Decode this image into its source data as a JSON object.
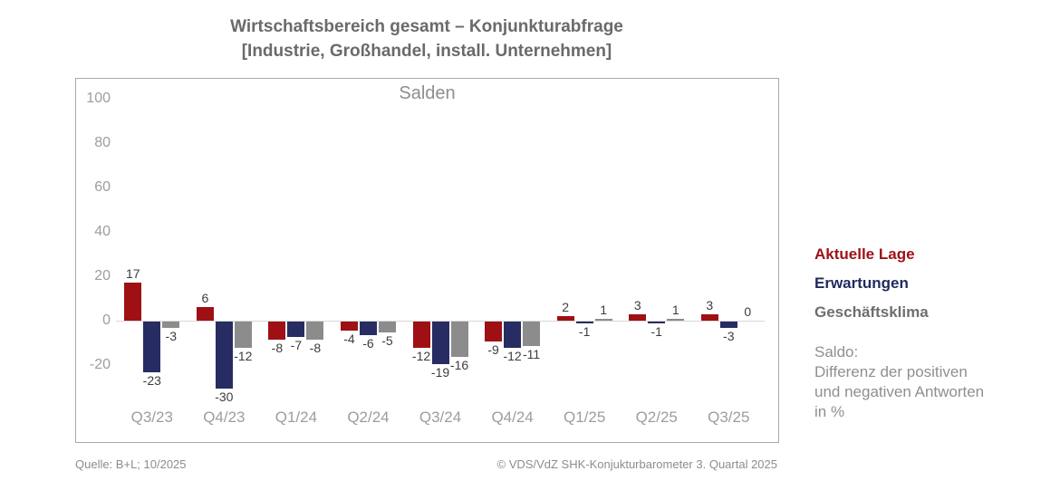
{
  "header": {
    "title_line1": "Wirtschaftsbereich gesamt – Konjunkturabfrage",
    "title_line2": "[Industrie, Großhandel, install. Unternehmen]"
  },
  "chart_data": {
    "type": "bar",
    "title": "Salden",
    "categories": [
      "Q3/23",
      "Q4/23",
      "Q1/24",
      "Q2/24",
      "Q3/24",
      "Q4/24",
      "Q1/25",
      "Q2/25",
      "Q3/25"
    ],
    "series": [
      {
        "name": "Aktuelle Lage",
        "color": "#9e1014",
        "values": [
          17,
          6,
          -8,
          -4,
          -12,
          -9,
          2,
          3,
          3
        ]
      },
      {
        "name": "Erwartungen",
        "color": "#272c63",
        "values": [
          -23,
          -30,
          -7,
          -6,
          -19,
          -12,
          -1,
          -1,
          -3
        ]
      },
      {
        "name": "Geschäftsklima",
        "color": "#8c8c8c",
        "values": [
          -3,
          -12,
          -8,
          -5,
          -16,
          -11,
          1,
          1,
          0
        ]
      }
    ],
    "y_ticks": [
      100,
      80,
      60,
      40,
      20,
      0,
      -20
    ],
    "ylim": [
      -44,
      109
    ],
    "grid": false,
    "data_labels": true,
    "legend_position": "right-outside"
  },
  "legend": {
    "items": [
      {
        "label": "Aktuelle Lage",
        "color": "#9e1016"
      },
      {
        "label": "Erwartungen",
        "color": "#1f2a5e"
      },
      {
        "label": "Geschäftsklima",
        "color": "#6e6e6e"
      }
    ],
    "note_line1": "Saldo:",
    "note_line2": "Differenz der positiven",
    "note_line3": "und negativen Antworten",
    "note_line4": "in %"
  },
  "footer": {
    "source": "Quelle: B+L; 10/2025",
    "copyright": "© VDS/VdZ SHK-Konjukturbarometer 3. Quartal 2025"
  }
}
